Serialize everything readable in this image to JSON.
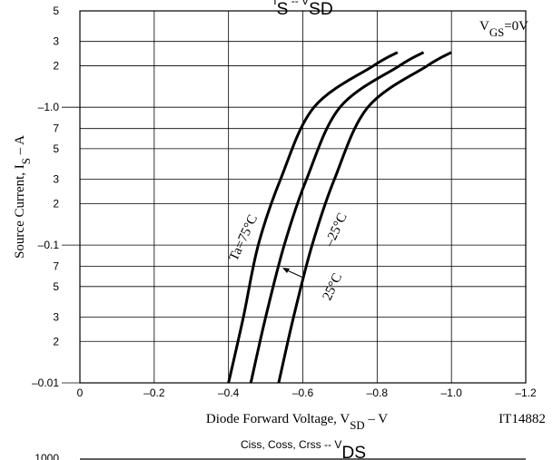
{
  "chart_data": {
    "type": "line",
    "title": [
      "I",
      "S",
      " -- V",
      "SD"
    ],
    "x_label": [
      "Diode Forward Voltage, V",
      "SD",
      " – V"
    ],
    "y_label": [
      "Source Current, I",
      "S",
      " – A"
    ],
    "figure_code": "IT14882",
    "condition": [
      "V",
      "GS",
      "=0V"
    ],
    "log_y": true,
    "grid": true,
    "xlim": [
      0,
      -1.2
    ],
    "xticks": [
      0,
      {
        "value": -0.2,
        "label": "–0.2"
      },
      {
        "value": -0.4,
        "label": "–0.4"
      },
      {
        "value": -0.6,
        "label": "–0.6"
      },
      {
        "value": -0.8,
        "label": "–0.8"
      },
      {
        "value": -1.0,
        "label": "–1.0"
      },
      {
        "value": -1.2,
        "label": "–1.2"
      }
    ],
    "ylim": [
      0.01,
      5
    ],
    "yticks": [
      5,
      3,
      2,
      {
        "value": 1,
        "label": "–1.0"
      },
      {
        "value": 0.7,
        "label": "7"
      },
      {
        "value": 0.5,
        "label": "5"
      },
      {
        "value": 0.3,
        "label": "3"
      },
      {
        "value": 0.2,
        "label": "2"
      },
      {
        "value": 0.1,
        "label": "–0.1"
      },
      {
        "value": 0.07,
        "label": "7"
      },
      {
        "value": 0.05,
        "label": "5"
      },
      {
        "value": 0.03,
        "label": "3"
      },
      {
        "value": 0.02,
        "label": "2"
      },
      {
        "value": 0.01,
        "label": "–0.01"
      }
    ],
    "series": [
      {
        "name": "Ta=75°C",
        "color": "#000000",
        "x": [
          -0.4,
          -0.44,
          -0.48,
          -0.54,
          -0.63,
          -0.79,
          -0.855
        ],
        "values": [
          0.01,
          0.03,
          0.1,
          0.3,
          1,
          2,
          2.5
        ]
      },
      {
        "name": "25°C",
        "color": "#000000",
        "x": [
          -0.46,
          -0.5,
          -0.55,
          -0.61,
          -0.7,
          -0.86,
          -0.925
        ],
        "values": [
          0.01,
          0.03,
          0.1,
          0.3,
          1,
          2,
          2.5
        ]
      },
      {
        "name": "–25°C",
        "color": "#000000",
        "x": [
          -0.535,
          -0.575,
          -0.625,
          -0.685,
          -0.775,
          -0.935,
          -1.0
        ],
        "values": [
          0.01,
          0.03,
          0.1,
          0.3,
          1,
          2,
          2.5
        ]
      }
    ]
  },
  "next_chart": {
    "title": [
      "Ciss, Coss, Crss -- V",
      "DS"
    ],
    "first_ytick": "1000"
  }
}
